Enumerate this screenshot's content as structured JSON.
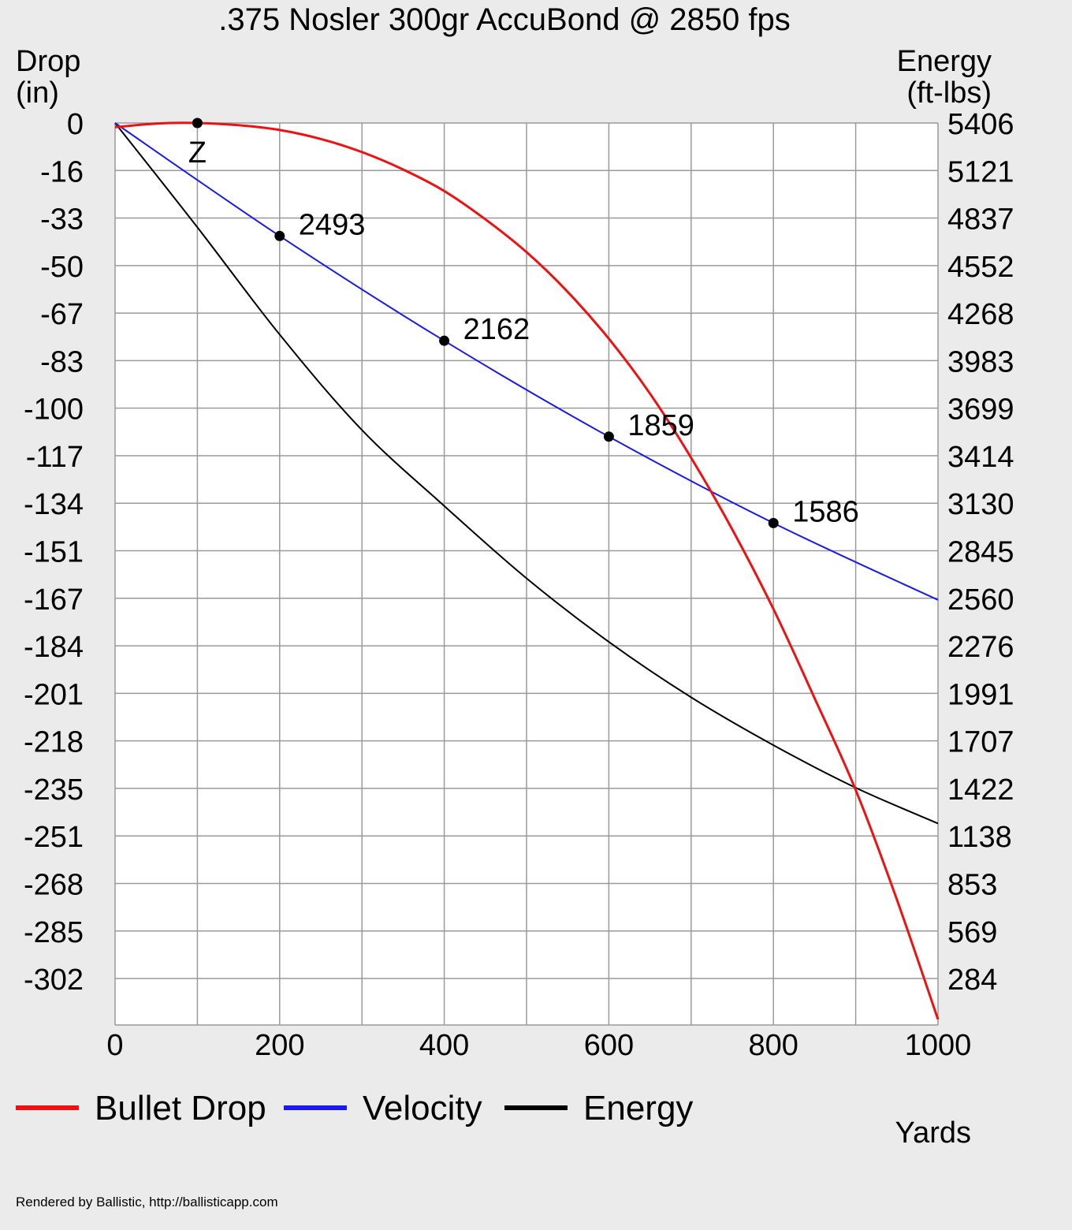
{
  "chart_data": {
    "type": "line",
    "title": ".375 Nosler 300gr AccuBond @ 2850 fps",
    "left_axis_label": [
      "Drop",
      "(in)"
    ],
    "right_axis_label": [
      "Energy",
      "(ft-lbs)"
    ],
    "xlabel": "Yards",
    "xlim": [
      0,
      1000
    ],
    "x_ticks": [
      "0",
      "200",
      "400",
      "600",
      "800",
      "1000"
    ],
    "left_ticks": [
      "0",
      "-16",
      "-33",
      "-50",
      "-67",
      "-83",
      "-100",
      "-117",
      "-134",
      "-151",
      "-167",
      "-184",
      "-201",
      "-218",
      "-235",
      "-251",
      "-268",
      "-285",
      "-302"
    ],
    "right_ticks": [
      "5406",
      "5121",
      "4837",
      "4552",
      "4268",
      "3983",
      "3699",
      "3414",
      "3130",
      "2845",
      "2560",
      "2276",
      "1991",
      "1707",
      "1422",
      "1138",
      "853",
      "569",
      "284"
    ],
    "drop_ylim": [
      -322,
      0
    ],
    "energy_ylim": [
      0,
      5406
    ],
    "velocity_ylim": [
      0,
      2850
    ],
    "grid": true,
    "legend_position": "bottom",
    "zero_marker": {
      "x": 100,
      "y": 0,
      "label": "Z"
    },
    "series": [
      {
        "name": "Bullet Drop",
        "color": "#ee1111",
        "axis": "drop",
        "x": [
          0,
          50,
          100,
          150,
          200,
          250,
          300,
          350,
          400,
          450,
          500,
          550,
          600,
          650,
          700,
          750,
          800,
          850,
          900,
          950,
          1000
        ],
        "values": [
          -1.5,
          -0.2,
          0,
          -0.8,
          -2.5,
          -5.7,
          -10.4,
          -16.6,
          -24.3,
          -34.4,
          -46.1,
          -60.3,
          -77.0,
          -96.6,
          -119.5,
          -145.1,
          -173.5,
          -205.3,
          -238.1,
          -277.2,
          -320.0
        ]
      },
      {
        "name": "Velocity",
        "color": "#1a1aee",
        "axis": "velocity",
        "x": [
          0,
          200,
          400,
          600,
          800,
          1000
        ],
        "values": [
          2850,
          2493,
          2162,
          1859,
          1586,
          1343
        ],
        "labeled_points": [
          {
            "x": 200,
            "label": "2493"
          },
          {
            "x": 400,
            "label": "2162"
          },
          {
            "x": 600,
            "label": "1859"
          },
          {
            "x": 800,
            "label": "1586"
          }
        ]
      },
      {
        "name": "Energy",
        "color": "#000000",
        "axis": "energy",
        "x": [
          0,
          100,
          200,
          300,
          400,
          500,
          600,
          700,
          800,
          900,
          1000
        ],
        "values": [
          5406,
          4781,
          4138,
          3566,
          3111,
          2677,
          2296,
          1964,
          1677,
          1422,
          1208
        ]
      }
    ]
  },
  "footer": {
    "credit": "Rendered by Ballistic, http://ballisticapp.com"
  }
}
